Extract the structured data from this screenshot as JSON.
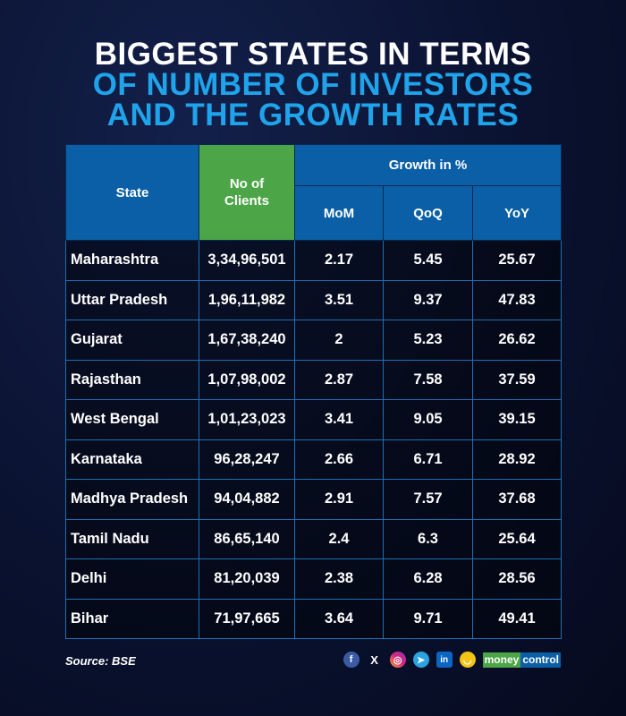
{
  "title": {
    "line1": "BIGGEST STATES IN TERMS",
    "line2": "OF NUMBER OF INVESTORS",
    "line3": "AND THE GROWTH RATES"
  },
  "chart_data": {
    "type": "table",
    "headers": {
      "state": "State",
      "clients": "No of Clients",
      "growth": "Growth in %",
      "mom": "MoM",
      "qoq": "QoQ",
      "yoy": "YoY"
    },
    "rows": [
      {
        "state": "Maharashtra",
        "clients": "3,34,96,501",
        "mom": "2.17",
        "qoq": "5.45",
        "yoy": "25.67"
      },
      {
        "state": "Uttar Pradesh",
        "clients": "1,96,11,982",
        "mom": "3.51",
        "qoq": "9.37",
        "yoy": "47.83"
      },
      {
        "state": "Gujarat",
        "clients": "1,67,38,240",
        "mom": "2",
        "qoq": "5.23",
        "yoy": "26.62"
      },
      {
        "state": "Rajasthan",
        "clients": "1,07,98,002",
        "mom": "2.87",
        "qoq": "7.58",
        "yoy": "37.59"
      },
      {
        "state": "West Bengal",
        "clients": "1,01,23,023",
        "mom": "3.41",
        "qoq": "9.05",
        "yoy": "39.15"
      },
      {
        "state": "Karnataka",
        "clients": "96,28,247",
        "mom": "2.66",
        "qoq": "6.71",
        "yoy": "28.92"
      },
      {
        "state": "Madhya Pradesh",
        "clients": "94,04,882",
        "mom": "2.91",
        "qoq": "7.57",
        "yoy": "37.68"
      },
      {
        "state": "Tamil Nadu",
        "clients": "86,65,140",
        "mom": "2.4",
        "qoq": "6.3",
        "yoy": "25.64"
      },
      {
        "state": "Delhi",
        "clients": "81,20,039",
        "mom": "2.38",
        "qoq": "6.28",
        "yoy": "28.56"
      },
      {
        "state": "Bihar",
        "clients": "71,97,665",
        "mom": "3.64",
        "qoq": "9.71",
        "yoy": "49.41"
      }
    ]
  },
  "footer": {
    "source": "Source: BSE",
    "logo_a": "money",
    "logo_b": "control",
    "icons": [
      "facebook-icon",
      "x-icon",
      "instagram-icon",
      "telegram-icon",
      "linkedin-icon",
      "snapchat-icon"
    ]
  },
  "colors": {
    "header_blue": "#0a5fa6",
    "header_green": "#4ca547",
    "title_blue": "#1fa3ea"
  }
}
